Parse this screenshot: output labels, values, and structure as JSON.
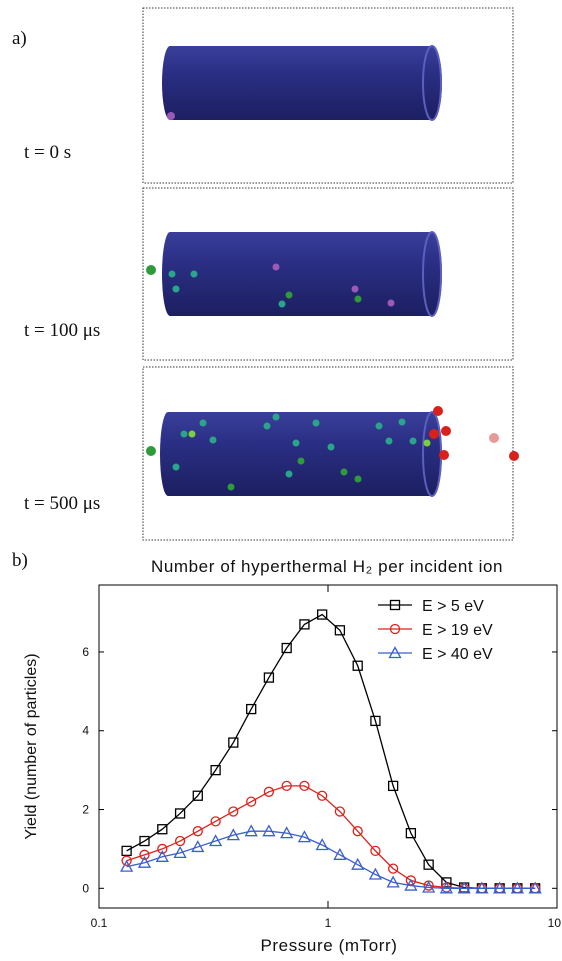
{
  "panel_a": {
    "label": "a)",
    "frames": [
      {
        "time": "t = 0 s"
      },
      {
        "time": "t = 100 μs"
      },
      {
        "time": "t = 500 μs"
      }
    ]
  },
  "panel_b": {
    "label": "b)"
  },
  "chart_data": {
    "type": "line",
    "title": "Number of hyperthermal H₂ per incident ion",
    "x_label": "Pressure (mTorr)",
    "y_label": "Yield (number of particles)",
    "x_scale": "log",
    "x": [
      0.132,
      0.158,
      0.189,
      0.226,
      0.27,
      0.323,
      0.386,
      0.462,
      0.552,
      0.66,
      0.789,
      0.943,
      1.127,
      1.348,
      1.611,
      1.925,
      2.301,
      2.751,
      3.289,
      3.931,
      4.699,
      5.617,
      6.714,
      8.026
    ],
    "series": [
      {
        "name": "E > 5 eV",
        "color": "#000000",
        "marker": "square",
        "values": [
          0.95,
          1.2,
          1.5,
          1.9,
          2.35,
          3.0,
          3.7,
          4.55,
          5.35,
          6.1,
          6.7,
          6.95,
          6.55,
          5.65,
          4.25,
          2.6,
          1.4,
          0.6,
          0.15,
          0.02,
          0,
          0,
          0,
          0
        ]
      },
      {
        "name": "E > 19 eV",
        "color": "#e0201b",
        "marker": "circle",
        "values": [
          0.7,
          0.85,
          1.0,
          1.2,
          1.45,
          1.7,
          1.95,
          2.2,
          2.45,
          2.6,
          2.6,
          2.35,
          1.95,
          1.45,
          0.95,
          0.5,
          0.2,
          0.07,
          0.02,
          0,
          0,
          0,
          0,
          0
        ]
      },
      {
        "name": "E > 40 eV",
        "color": "#3a5fcd",
        "marker": "triangle",
        "values": [
          0.55,
          0.65,
          0.8,
          0.9,
          1.05,
          1.2,
          1.35,
          1.45,
          1.45,
          1.4,
          1.3,
          1.1,
          0.85,
          0.6,
          0.35,
          0.15,
          0.07,
          0.02,
          0,
          0,
          0,
          0,
          0,
          0
        ]
      }
    ],
    "xlim": [
      0.1,
      10
    ],
    "xticks": [
      0.1,
      1,
      10
    ],
    "ylim": [
      -0.5,
      7.7
    ],
    "yticks": [
      0,
      2,
      4,
      6
    ],
    "legend": "upper right",
    "grid": false
  }
}
